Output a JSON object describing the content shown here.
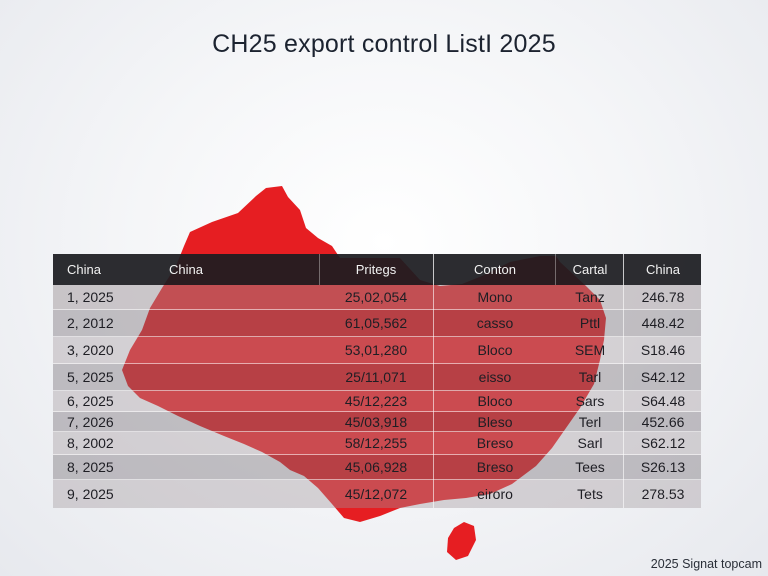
{
  "title": "CH25 export control ListI 2025",
  "colors": {
    "map_red": "#e61e22",
    "header_bg": "#1c1c20"
  },
  "table": {
    "headers": [
      "China",
      "China",
      "Pritegs",
      "Conton",
      "Cartal",
      "China"
    ],
    "rows": [
      [
        "1, 2025",
        "",
        "25,02,054",
        "Mono",
        "Tanz",
        "246.78"
      ],
      [
        "2, 2012",
        "",
        "61,05,562",
        "casso",
        "Pttl",
        "448.42"
      ],
      [
        "3, 2020",
        "",
        "53,01,280",
        "Bloco",
        "SEM",
        "S18.46"
      ],
      [
        "5, 2025",
        "",
        "25/11,071",
        "eisso",
        "Tarl",
        "S42.12"
      ],
      [
        "6, 2025",
        "",
        "45/12,223",
        "Bloco",
        "Sars",
        "S64.48"
      ],
      [
        "7, 2026",
        "",
        "45/03,918",
        "Bleso",
        "Terl",
        "452.66"
      ],
      [
        "8, 2002",
        "",
        "58/12,255",
        "Breso",
        "Sarl",
        "S62.12"
      ],
      [
        "8, 2025",
        "",
        "45,06,928",
        "Breso",
        "Tees",
        "S26.13"
      ],
      [
        "9, 2025",
        "",
        "45/12,072",
        "eiroro",
        "Tets",
        "278.53"
      ]
    ]
  },
  "footer": "2025 Signat topcam"
}
